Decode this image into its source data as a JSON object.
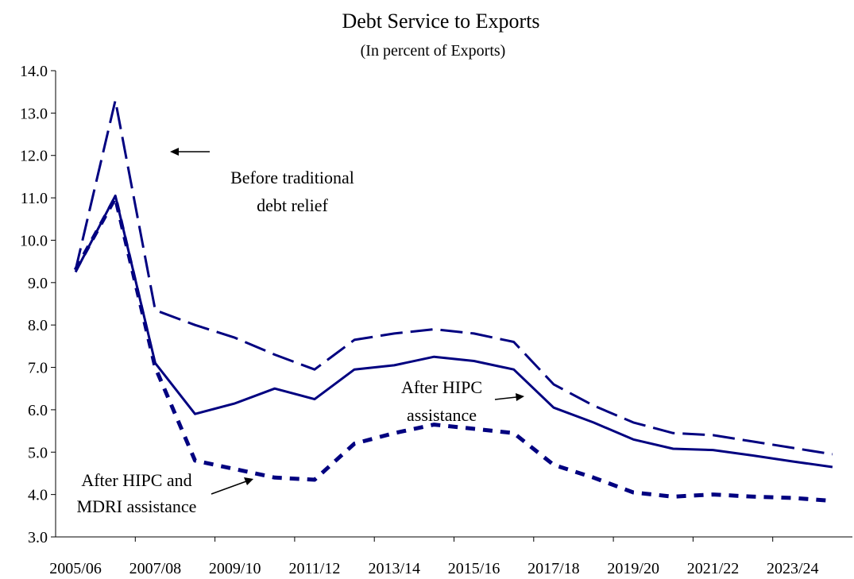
{
  "chart_data": {
    "type": "line",
    "title": "Debt Service to Exports",
    "subtitle": "(In percent of Exports)",
    "xlabel": "",
    "ylabel": "",
    "ylim": [
      3.0,
      14.0
    ],
    "y_ticks": [
      "3.0",
      "4.0",
      "5.0",
      "6.0",
      "7.0",
      "8.0",
      "9.0",
      "10.0",
      "11.0",
      "12.0",
      "13.0",
      "14.0"
    ],
    "x": [
      "2005/06",
      "2006/07",
      "2007/08",
      "2008/09",
      "2009/10",
      "2010/11",
      "2011/12",
      "2012/13",
      "2013/14",
      "2014/15",
      "2015/16",
      "2016/17",
      "2017/18",
      "2018/19",
      "2019/20",
      "2020/21",
      "2021/22",
      "2022/23",
      "2023/24",
      "2024/25"
    ],
    "x_tick_labels": [
      "2005/06",
      "2007/08",
      "2009/10",
      "2011/12",
      "2013/14",
      "2015/16",
      "2017/18",
      "2019/20",
      "2021/22",
      "2023/24"
    ],
    "grid": false,
    "series": [
      {
        "style": "long-dash",
        "color": "#000080",
        "values": [
          9.3,
          13.3,
          8.35,
          8.0,
          7.7,
          7.3,
          6.95,
          7.65,
          7.8,
          7.9,
          7.8,
          7.6,
          6.6,
          6.1,
          5.7,
          5.45,
          5.4,
          5.25,
          5.1,
          4.95
        ]
      },
      {
        "style": "solid",
        "color": "#000080",
        "values": [
          9.25,
          11.05,
          7.1,
          5.9,
          6.15,
          6.5,
          6.25,
          6.95,
          7.05,
          7.25,
          7.15,
          6.95,
          6.05,
          5.7,
          5.3,
          5.08,
          5.05,
          4.92,
          4.78,
          4.65
        ]
      },
      {
        "style": "short-dash",
        "color": "#000080",
        "values": [
          9.3,
          11.0,
          7.0,
          4.8,
          4.6,
          4.4,
          4.35,
          5.2,
          5.45,
          5.65,
          5.55,
          5.45,
          4.7,
          4.4,
          4.05,
          3.95,
          4.0,
          3.95,
          3.92,
          3.85
        ]
      }
    ],
    "annotations": [
      {
        "id": "before",
        "lines": [
          "Before traditional",
          "debt relief"
        ]
      },
      {
        "id": "hipc",
        "lines": [
          "After HIPC",
          "assistance"
        ]
      },
      {
        "id": "mdri",
        "lines": [
          "After HIPC and",
          "MDRI assistance"
        ]
      }
    ]
  }
}
